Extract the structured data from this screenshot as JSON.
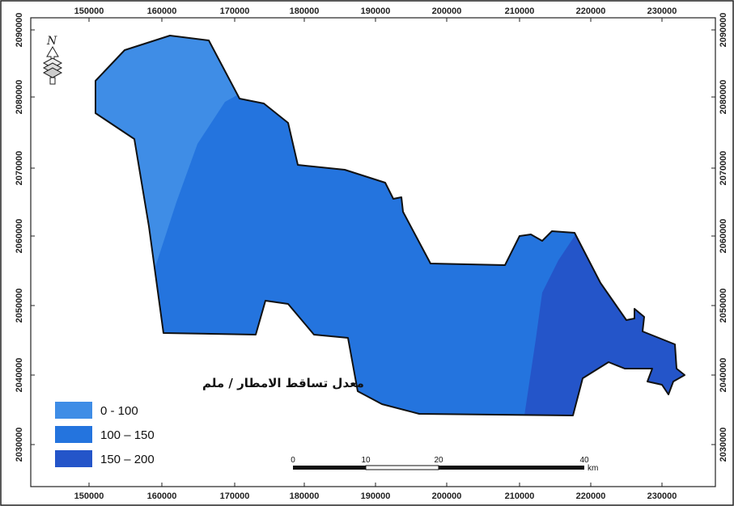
{
  "axes": {
    "x_ticks": [
      "150000",
      "160000",
      "170000",
      "180000",
      "190000",
      "200000",
      "210000",
      "220000",
      "230000"
    ],
    "y_ticks": [
      "2090000",
      "2080000",
      "2070000",
      "2060000",
      "2050000",
      "2040000",
      "2030000"
    ]
  },
  "legend": {
    "title": "معدل تساقط الامطار / ملم",
    "classes": [
      {
        "label": "0 - 100",
        "color": "#3f8de6"
      },
      {
        "label": "100 – 150",
        "color": "#2474de"
      },
      {
        "label": "150 – 200",
        "color": "#2455c9"
      }
    ]
  },
  "scale_bar": {
    "labels": [
      "0",
      "10",
      "20",
      "40"
    ],
    "unit": "km"
  },
  "north_arrow": {
    "label": "N",
    "icon": "north-arrow-icon"
  },
  "colors": {
    "outline": "#111111",
    "background": "#ffffff"
  }
}
